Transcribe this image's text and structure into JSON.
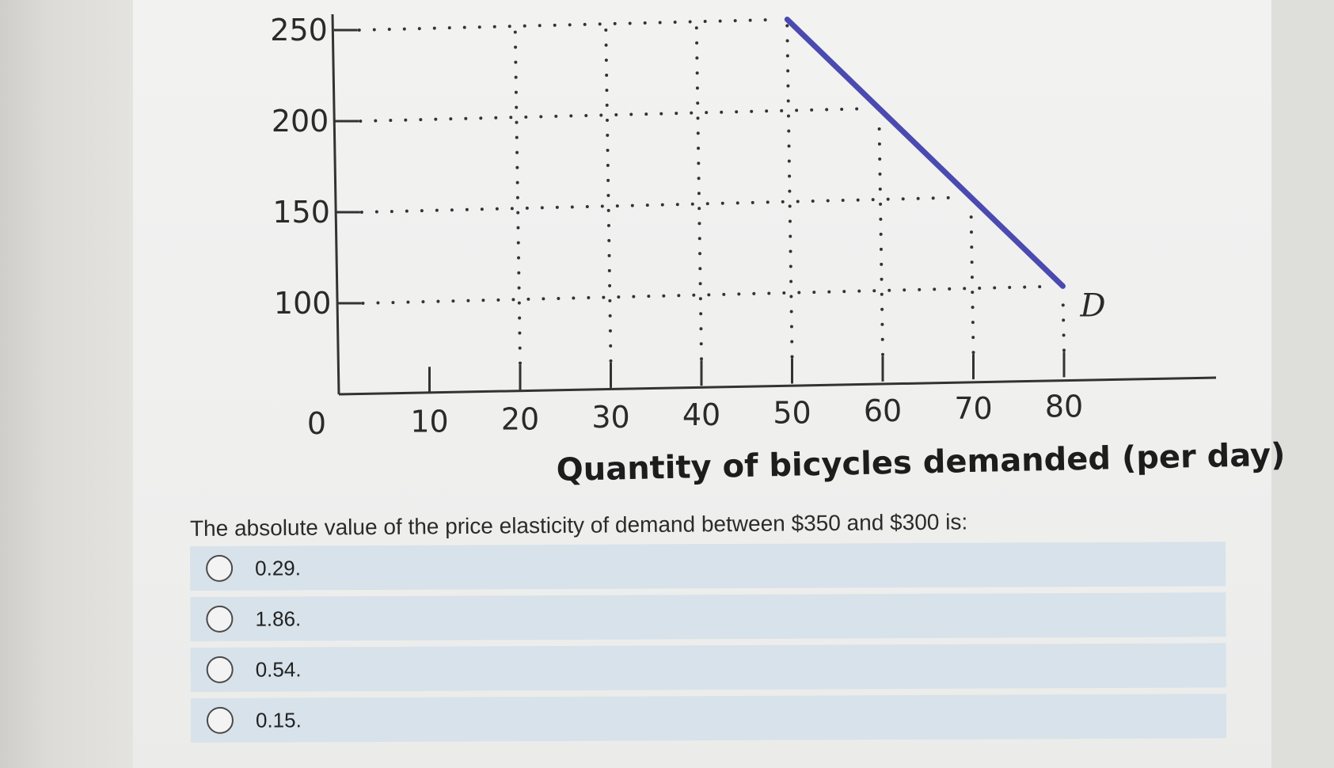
{
  "chart_data": {
    "type": "line",
    "title": "",
    "xlabel": "Quantity of bicycles demanded (per day)",
    "ylabel": "",
    "x_ticks": [
      "0",
      "10",
      "20",
      "30",
      "40",
      "50",
      "60",
      "70",
      "80"
    ],
    "y_ticks": [
      "250",
      "200",
      "150",
      "100"
    ],
    "xlim": [
      0,
      90
    ],
    "ylim": [
      50,
      250
    ],
    "grid": "dotted",
    "series": [
      {
        "name": "D",
        "points": [
          [
            50,
            250
          ],
          [
            60,
            200
          ],
          [
            70,
            150
          ],
          [
            80,
            100
          ]
        ],
        "color": "#4a4ab0"
      }
    ]
  },
  "question": {
    "text": "The absolute value of the price elasticity of demand between $350 and $300 is:",
    "options": [
      {
        "label": "0.29."
      },
      {
        "label": "1.86."
      },
      {
        "label": "0.54."
      },
      {
        "label": "0.15."
      }
    ]
  },
  "colors": {
    "curve": "#4a4ab0",
    "option_background": "#d8e2ea"
  }
}
